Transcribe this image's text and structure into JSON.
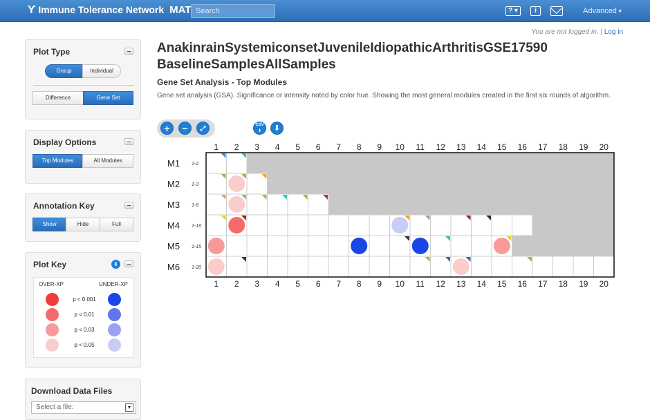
{
  "header": {
    "brand": "Immune Tolerance Network",
    "app": "MAT",
    "search_placeholder": "Search",
    "help_label": "?",
    "info_label": "i",
    "advanced_label": "Advanced"
  },
  "login": {
    "status": "You are not logged in.",
    "separator": "|",
    "link": "Log in"
  },
  "plot_type": {
    "title": "Plot Type",
    "mode_options": [
      {
        "label": "Group",
        "active": true
      },
      {
        "label": "Individual",
        "active": false
      }
    ],
    "analysis_options": [
      {
        "label": "Difference",
        "active": false
      },
      {
        "label": "Gene Set",
        "active": true
      }
    ]
  },
  "display_options": {
    "title": "Display Options",
    "options": [
      {
        "label": "Top Modules",
        "active": true
      },
      {
        "label": "All Modules",
        "active": false
      }
    ]
  },
  "annotation_key": {
    "title": "Annotation Key",
    "options": [
      {
        "label": "Show",
        "active": true
      },
      {
        "label": "Hide",
        "active": false
      },
      {
        "label": "Full",
        "active": false
      }
    ]
  },
  "plot_key": {
    "title": "Plot Key",
    "over_label": "OVER-XP",
    "under_label": "UNDER-XP",
    "levels": [
      {
        "label": "p < 0.001",
        "over_color": "#f03c3c",
        "under_color": "#1a46e8"
      },
      {
        "label": "p < 0.01",
        "over_color": "#f56a6a",
        "under_color": "#6274f0"
      },
      {
        "label": "p < 0.03",
        "over_color": "#f89a9a",
        "under_color": "#9aa3f2"
      },
      {
        "label": "p < 0.05",
        "over_color": "#fbcccc",
        "under_color": "#c8cdf6"
      }
    ]
  },
  "download": {
    "title": "Download Data Files",
    "placeholder": "Select a file:"
  },
  "main": {
    "title": "AnakinrainSystemiconsetJuvenileIdiopathicArthritisGSE17590 BaselineSamplesAllSamples",
    "subtitle": "Gene Set Analysis - Top Modules",
    "description": "Gene set analysis (GSA). Significance or intensity noted by color hue. Showing the most general modules created in the first six rounds of algorithm.",
    "toolbar_icons": [
      "zoom-in-icon",
      "zoom-out-icon",
      "fit-screen-icon",
      "csv-download-icon",
      "download-icon"
    ],
    "csv_label": "CSV"
  },
  "chart_data": {
    "type": "heatmap",
    "columns": [
      "1",
      "2",
      "3",
      "4",
      "5",
      "6",
      "7",
      "8",
      "9",
      "10",
      "11",
      "12",
      "13",
      "14",
      "15",
      "16",
      "17",
      "18",
      "19",
      "20"
    ],
    "inactive_color": "#c8c8c8",
    "rows": [
      {
        "name": "M1",
        "range": "1-2",
        "active_count": 2,
        "markers": [
          {
            "col": 1,
            "color": "#4a90d9"
          },
          {
            "col": 2,
            "color": "#3cc0c0"
          }
        ],
        "dots": []
      },
      {
        "name": "M2",
        "range": "1-3",
        "active_count": 3,
        "markers": [
          {
            "col": 1,
            "color": "#8cc04a"
          },
          {
            "col": 2,
            "color": "#8cc04a"
          },
          {
            "col": 3,
            "color": "#f0a030"
          }
        ],
        "dots": [
          {
            "col": 2,
            "level": "p < 0.05",
            "direction": "over"
          }
        ]
      },
      {
        "name": "M3",
        "range": "1-6",
        "active_count": 6,
        "markers": [
          {
            "col": 1,
            "color": "#f0a030"
          },
          {
            "col": 2,
            "color": "#8cc04a"
          },
          {
            "col": 3,
            "color": "#8cc04a"
          },
          {
            "col": 4,
            "color": "#3cc0c0"
          },
          {
            "col": 5,
            "color": "#8cc04a"
          },
          {
            "col": 6,
            "color": "#c0302a"
          }
        ],
        "dots": [
          {
            "col": 2,
            "level": "p < 0.05",
            "direction": "over"
          }
        ]
      },
      {
        "name": "M4",
        "range": "1-16",
        "active_count": 16,
        "markers": [
          {
            "col": 1,
            "color": "#f0d020"
          },
          {
            "col": 2,
            "color": "#a02020"
          },
          {
            "col": 10,
            "color": "#f0a030"
          },
          {
            "col": 11,
            "color": "#b090c0"
          },
          {
            "col": 13,
            "color": "#a02020"
          },
          {
            "col": 14,
            "color": "#1a2a4a"
          }
        ],
        "dots": [
          {
            "col": 2,
            "level": "p < 0.01",
            "direction": "over"
          },
          {
            "col": 10,
            "level": "p < 0.05",
            "direction": "under"
          }
        ]
      },
      {
        "name": "M5",
        "range": "1-15",
        "active_count": 15,
        "markers": [
          {
            "col": 10,
            "color": "#333333"
          },
          {
            "col": 12,
            "color": "#3cc0c0"
          },
          {
            "col": 15,
            "color": "#f0d020"
          }
        ],
        "dots": [
          {
            "col": 1,
            "level": "p < 0.03",
            "direction": "over"
          },
          {
            "col": 8,
            "level": "p < 0.001",
            "direction": "under"
          },
          {
            "col": 11,
            "level": "p < 0.001",
            "direction": "under"
          },
          {
            "col": 15,
            "level": "p < 0.03",
            "direction": "over"
          }
        ]
      },
      {
        "name": "M6",
        "range": "1-20",
        "active_count": 20,
        "markers": [
          {
            "col": 2,
            "color": "#333333"
          },
          {
            "col": 11,
            "color": "#8cc04a"
          },
          {
            "col": 12,
            "color": "#3a6aa0"
          },
          {
            "col": 13,
            "color": "#3a6aa0"
          },
          {
            "col": 16,
            "color": "#8cc04a"
          }
        ],
        "dots": [
          {
            "col": 1,
            "level": "p < 0.05",
            "direction": "over"
          },
          {
            "col": 13,
            "level": "p < 0.05",
            "direction": "over"
          }
        ]
      }
    ]
  }
}
